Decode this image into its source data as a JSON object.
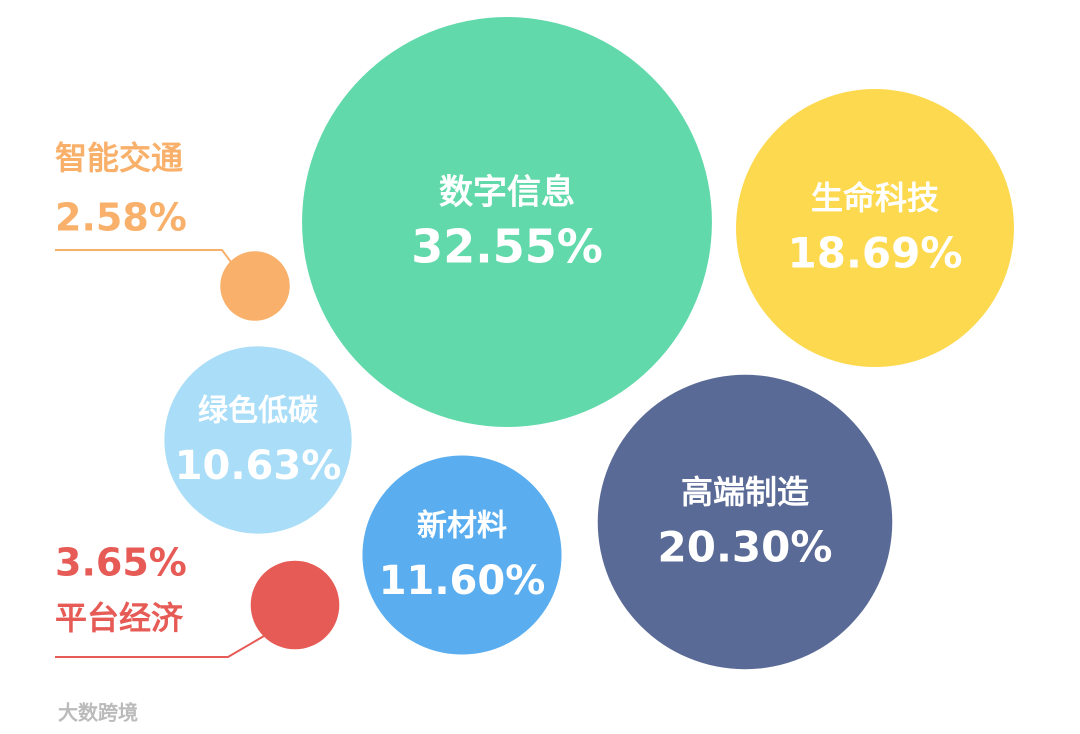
{
  "chart_data": {
    "type": "bubble",
    "categories": [
      "数字信息",
      "生命科技",
      "高端制造",
      "新材料",
      "绿色低碳",
      "智能交通",
      "平台经济"
    ],
    "values": [
      32.55,
      18.69,
      20.3,
      11.6,
      10.63,
      2.58,
      3.65
    ],
    "value_labels": [
      "32.55%",
      "18.69%",
      "20.30%",
      "11.60%",
      "10.63%",
      "2.58%",
      "3.65%"
    ],
    "colors": [
      "#62d9ab",
      "#fcd94f",
      "#5a6a96",
      "#5aaef0",
      "#a9ddf8",
      "#f8b06a",
      "#e65b55"
    ]
  },
  "watermark": "大数跨境"
}
